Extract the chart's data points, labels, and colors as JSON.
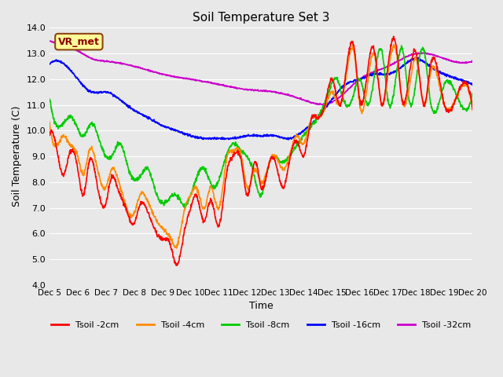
{
  "title": "Soil Temperature Set 3",
  "xlabel": "Time",
  "ylabel": "Soil Temperature (C)",
  "ylim": [
    4.0,
    14.0
  ],
  "yticks": [
    4.0,
    5.0,
    6.0,
    7.0,
    8.0,
    9.0,
    10.0,
    11.0,
    12.0,
    13.0,
    14.0
  ],
  "x_labels": [
    "Dec 5",
    "Dec 6",
    "Dec 7",
    "Dec 8",
    "Dec 9",
    "Dec 10",
    "Dec 11",
    "Dec 12",
    "Dec 13",
    "Dec 14",
    "Dec 15",
    "Dec 16",
    "Dec 17",
    "Dec 18",
    "Dec 19",
    "Dec 20"
  ],
  "colors": {
    "Tsoil -2cm": "#ff0000",
    "Tsoil -4cm": "#ff8c00",
    "Tsoil -8cm": "#00cc00",
    "Tsoil -16cm": "#0000ff",
    "Tsoil -32cm": "#cc00cc"
  },
  "background_color": "#e8e8e8",
  "grid_color": "#ffffff",
  "annotation_text": "VR_met",
  "annotation_bg": "#ffff99",
  "annotation_border": "#8B4513"
}
